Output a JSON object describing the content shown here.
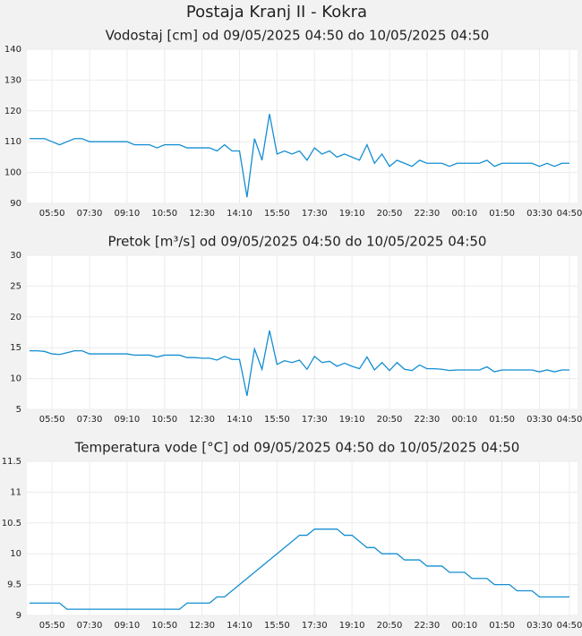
{
  "title": "Postaja Kranj II - Kokra",
  "chart_data": [
    {
      "type": "line",
      "title": "Vodostaj [cm] od 09/05/2025 04:50 do 10/05/2025 04:50",
      "categories": [
        null,
        null,
        null,
        "05:50",
        null,
        null,
        null,
        null,
        "07:30",
        null,
        null,
        null,
        null,
        "09:10",
        null,
        null,
        null,
        null,
        "10:50",
        null,
        null,
        null,
        null,
        "12:30",
        null,
        null,
        null,
        null,
        "14:10",
        null,
        null,
        null,
        null,
        "15:50",
        null,
        null,
        null,
        null,
        "17:30",
        null,
        null,
        null,
        null,
        "19:10",
        null,
        null,
        null,
        null,
        "20:50",
        null,
        null,
        null,
        null,
        "22:30",
        null,
        null,
        null,
        null,
        "00:10",
        null,
        null,
        null,
        null,
        "01:50",
        null,
        null,
        null,
        null,
        "03:30",
        null,
        null,
        null,
        "04:50"
      ],
      "color": "#148ed2",
      "values": [
        111,
        111,
        111,
        110,
        109,
        110,
        111,
        111,
        110,
        110,
        110,
        110,
        110,
        110,
        109,
        109,
        109,
        108,
        109,
        109,
        109,
        108,
        108,
        108,
        108,
        107,
        109,
        107,
        107,
        92,
        111,
        104,
        119,
        106,
        107,
        106,
        107,
        104,
        108,
        106,
        107,
        105,
        106,
        105,
        104,
        109,
        103,
        106,
        102,
        104,
        103,
        102,
        104,
        103,
        103,
        103,
        102,
        103,
        103,
        103,
        103,
        104,
        102,
        103,
        103,
        103,
        103,
        103,
        102,
        103,
        102,
        103,
        103
      ],
      "ylim": [
        90,
        140
      ],
      "yticks": [
        90,
        100,
        110,
        120,
        130,
        140
      ],
      "grid": true
    },
    {
      "type": "line",
      "title": "Pretok [m³/s] od 09/05/2025 04:50 do 10/05/2025 04:50",
      "categories": [
        null,
        null,
        null,
        "05:50",
        null,
        null,
        null,
        null,
        "07:30",
        null,
        null,
        null,
        null,
        "09:10",
        null,
        null,
        null,
        null,
        "10:50",
        null,
        null,
        null,
        null,
        "12:30",
        null,
        null,
        null,
        null,
        "14:10",
        null,
        null,
        null,
        null,
        "15:50",
        null,
        null,
        null,
        null,
        "17:30",
        null,
        null,
        null,
        null,
        "19:10",
        null,
        null,
        null,
        null,
        "20:50",
        null,
        null,
        null,
        null,
        "22:30",
        null,
        null,
        null,
        null,
        "00:10",
        null,
        null,
        null,
        null,
        "01:50",
        null,
        null,
        null,
        null,
        "03:30",
        null,
        null,
        null,
        "04:50"
      ],
      "color": "#148ed2",
      "values": [
        14.5,
        14.5,
        14.4,
        14.0,
        13.9,
        14.2,
        14.5,
        14.5,
        14.0,
        14.0,
        14.0,
        14.0,
        14.0,
        14.0,
        13.8,
        13.8,
        13.8,
        13.5,
        13.8,
        13.8,
        13.8,
        13.4,
        13.4,
        13.3,
        13.3,
        13.0,
        13.6,
        13.1,
        13.1,
        7.2,
        14.8,
        11.5,
        17.8,
        12.3,
        12.9,
        12.6,
        13.0,
        11.5,
        13.6,
        12.6,
        12.8,
        12.0,
        12.5,
        12.0,
        11.6,
        13.5,
        11.4,
        12.6,
        11.3,
        12.6,
        11.5,
        11.3,
        12.2,
        11.6,
        11.6,
        11.5,
        11.3,
        11.4,
        11.4,
        11.4,
        11.4,
        11.9,
        11.1,
        11.4,
        11.4,
        11.4,
        11.4,
        11.4,
        11.1,
        11.4,
        11.1,
        11.4,
        11.4
      ],
      "ylim": [
        5,
        30
      ],
      "yticks": [
        5,
        10,
        15,
        20,
        25,
        30
      ],
      "grid": true
    },
    {
      "type": "line",
      "title": "Temperatura vode [°C] od 09/05/2025 04:50 do 10/05/2025 04:50",
      "categories": [
        null,
        null,
        null,
        "05:50",
        null,
        null,
        null,
        null,
        "07:30",
        null,
        null,
        null,
        null,
        "09:10",
        null,
        null,
        null,
        null,
        "10:50",
        null,
        null,
        null,
        null,
        "12:30",
        null,
        null,
        null,
        null,
        "14:10",
        null,
        null,
        null,
        null,
        "15:50",
        null,
        null,
        null,
        null,
        "17:30",
        null,
        null,
        null,
        null,
        "19:10",
        null,
        null,
        null,
        null,
        "20:50",
        null,
        null,
        null,
        null,
        "22:30",
        null,
        null,
        null,
        null,
        "00:10",
        null,
        null,
        null,
        null,
        "01:50",
        null,
        null,
        null,
        null,
        "03:30",
        null,
        null,
        null,
        "04:50"
      ],
      "color": "#148ed2",
      "values": [
        9.2,
        9.2,
        9.2,
        9.2,
        9.2,
        9.1,
        9.1,
        9.1,
        9.1,
        9.1,
        9.1,
        9.1,
        9.1,
        9.1,
        9.1,
        9.1,
        9.1,
        9.1,
        9.1,
        9.1,
        9.1,
        9.2,
        9.2,
        9.2,
        9.2,
        9.3,
        9.3,
        9.4,
        9.5,
        9.6,
        9.7,
        9.8,
        9.9,
        10.0,
        10.1,
        10.2,
        10.3,
        10.3,
        10.4,
        10.4,
        10.4,
        10.4,
        10.3,
        10.3,
        10.2,
        10.1,
        10.1,
        10.0,
        10.0,
        10.0,
        9.9,
        9.9,
        9.9,
        9.8,
        9.8,
        9.8,
        9.7,
        9.7,
        9.7,
        9.6,
        9.6,
        9.6,
        9.5,
        9.5,
        9.5,
        9.4,
        9.4,
        9.4,
        9.3,
        9.3,
        9.3,
        9.3,
        9.3
      ],
      "ylim": [
        9,
        11.5
      ],
      "yticks": [
        9,
        9.5,
        10,
        10.5,
        11,
        11.5
      ],
      "grid": true
    }
  ]
}
